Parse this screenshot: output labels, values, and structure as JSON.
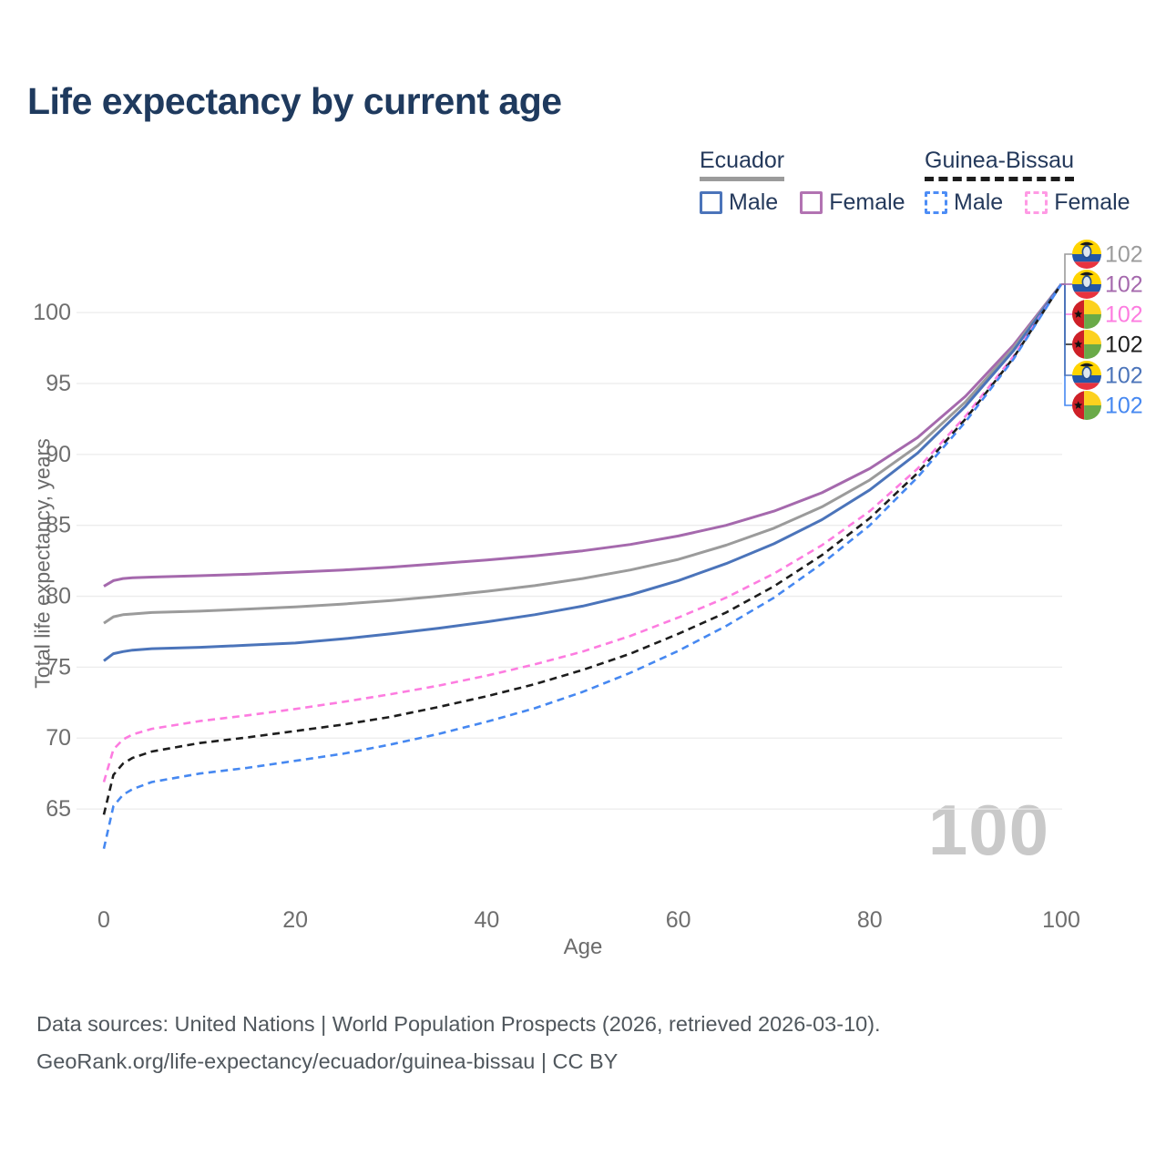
{
  "title": "Life expectancy by current age",
  "legend": {
    "groups": [
      {
        "label": "Ecuador",
        "underline": "solid",
        "underline_color": "#9b9b9b",
        "items": [
          {
            "label": "Male",
            "color": "#4b74ba",
            "dashed": false
          },
          {
            "label": "Female",
            "color": "#b273b2",
            "dashed": false
          }
        ]
      },
      {
        "label": "Guinea-Bissau",
        "underline": "dashed",
        "underline_color": "#1d1d1d",
        "items": [
          {
            "label": "Male",
            "color": "#4d8df6",
            "dashed": true
          },
          {
            "label": "Female",
            "color": "#ff9ae4",
            "dashed": true
          }
        ]
      }
    ]
  },
  "chart_data": {
    "type": "line",
    "title": "Life expectancy by current age",
    "xlabel": "Age",
    "ylabel": "Total life expectancy, years",
    "xlim": [
      0,
      100
    ],
    "ylim": [
      62,
      103
    ],
    "xticks": [
      0,
      20,
      40,
      60,
      80,
      100
    ],
    "yticks": [
      65,
      70,
      75,
      80,
      85,
      90,
      95,
      100
    ],
    "grid": "horizontal",
    "legend_position": "top-right",
    "age_counter": "100",
    "x": [
      0,
      1,
      2,
      3,
      5,
      10,
      15,
      20,
      25,
      30,
      35,
      40,
      45,
      50,
      55,
      60,
      65,
      70,
      75,
      80,
      85,
      90,
      95,
      100
    ],
    "series": [
      {
        "name": "Ecuador Female",
        "country": "Ecuador",
        "sex": "Female",
        "color": "#a569ad",
        "dashed": false,
        "values": [
          80.7,
          81.1,
          81.25,
          81.3,
          81.35,
          81.45,
          81.55,
          81.7,
          81.85,
          82.05,
          82.3,
          82.55,
          82.85,
          83.2,
          83.65,
          84.25,
          85.0,
          86.0,
          87.3,
          89.0,
          91.2,
          94.1,
          97.7,
          102
        ]
      },
      {
        "name": "Ecuador Both sexes",
        "country": "Ecuador",
        "sex": "Both",
        "color": "#9b9b9b",
        "dashed": false,
        "values": [
          78.1,
          78.55,
          78.7,
          78.75,
          78.85,
          78.95,
          79.1,
          79.25,
          79.45,
          79.7,
          80.0,
          80.35,
          80.75,
          81.25,
          81.85,
          82.6,
          83.6,
          84.8,
          86.3,
          88.2,
          90.6,
          93.7,
          97.5,
          102
        ]
      },
      {
        "name": "Ecuador Male",
        "country": "Ecuador",
        "sex": "Male",
        "color": "#4b74ba",
        "dashed": false,
        "values": [
          75.45,
          75.95,
          76.1,
          76.2,
          76.3,
          76.4,
          76.55,
          76.7,
          77.0,
          77.35,
          77.75,
          78.2,
          78.7,
          79.3,
          80.1,
          81.1,
          82.3,
          83.7,
          85.4,
          87.5,
          90.1,
          93.4,
          97.3,
          102
        ]
      },
      {
        "name": "Guinea-Bissau Female",
        "country": "Guinea-Bissau",
        "sex": "Female",
        "color": "#fd7ce0",
        "dashed": true,
        "values": [
          66.9,
          69.2,
          69.9,
          70.25,
          70.65,
          71.2,
          71.6,
          72.05,
          72.55,
          73.1,
          73.7,
          74.4,
          75.2,
          76.1,
          77.2,
          78.5,
          79.9,
          81.6,
          83.6,
          86.0,
          89.0,
          92.7,
          96.9,
          102
        ]
      },
      {
        "name": "Guinea-Bissau Both sexes",
        "country": "Guinea-Bissau",
        "sex": "Both",
        "color": "#1d1d1d",
        "dashed": true,
        "values": [
          64.6,
          67.4,
          68.2,
          68.6,
          69.05,
          69.65,
          70.05,
          70.5,
          70.95,
          71.5,
          72.2,
          72.95,
          73.8,
          74.8,
          75.95,
          77.35,
          78.85,
          80.7,
          82.9,
          85.5,
          88.7,
          92.5,
          96.8,
          102
        ]
      },
      {
        "name": "Guinea-Bissau Male",
        "country": "Guinea-Bissau",
        "sex": "Male",
        "color": "#4688f1",
        "dashed": true,
        "values": [
          62.2,
          65.2,
          66.0,
          66.4,
          66.9,
          67.5,
          67.9,
          68.4,
          68.9,
          69.55,
          70.3,
          71.15,
          72.1,
          73.25,
          74.6,
          76.15,
          77.9,
          79.9,
          82.3,
          85.0,
          88.4,
          92.3,
          96.7,
          102
        ]
      }
    ],
    "end_labels": [
      {
        "flag": "ecuador",
        "value": "102",
        "color": "#9b9b9b"
      },
      {
        "flag": "ecuador",
        "value": "102",
        "color": "#a569ad"
      },
      {
        "flag": "guinea-bissau",
        "value": "102",
        "color": "#fd7ce0"
      },
      {
        "flag": "guinea-bissau",
        "value": "102",
        "color": "#1d1d1d"
      },
      {
        "flag": "ecuador",
        "value": "102",
        "color": "#4b74ba"
      },
      {
        "flag": "guinea-bissau",
        "value": "102",
        "color": "#4688f1"
      }
    ]
  },
  "footer": {
    "line1": "Data sources: United Nations | World Population Prospects (2026, retrieved 2026-03-10).",
    "line2": "GeoRank.org/life-expectancy/ecuador/guinea-bissau | CC BY"
  }
}
